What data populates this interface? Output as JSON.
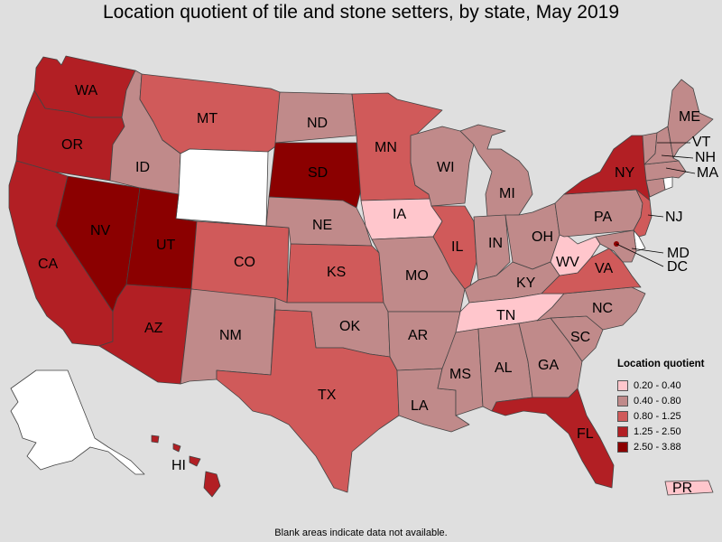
{
  "title": "Location quotient of tile and stone setters, by state, May 2019",
  "footnote": "Blank areas indicate data not available.",
  "legend": {
    "title": "Location quotient",
    "items": [
      {
        "label": "0.20 - 0.40",
        "color": "#ffc6cc"
      },
      {
        "label": "0.40 - 0.80",
        "color": "#c08a8a"
      },
      {
        "label": "0.80 - 1.25",
        "color": "#d05a5a"
      },
      {
        "label": "1.25 - 2.50",
        "color": "#b21f24"
      },
      {
        "label": "2.50 - 3.88",
        "color": "#8b0000"
      }
    ]
  },
  "colors": {
    "na": "#ffffff",
    "c1": "#ffc6cc",
    "c2": "#c08a8a",
    "c3": "#d05a5a",
    "c4": "#b21f24",
    "c5": "#8b0000"
  },
  "states": {
    "WA": {
      "name": "WA",
      "class": "1.25 - 2.50"
    },
    "OR": {
      "name": "OR",
      "class": "1.25 - 2.50"
    },
    "CA": {
      "name": "CA",
      "class": "1.25 - 2.50"
    },
    "NV": {
      "name": "NV",
      "class": "2.50 - 3.88"
    },
    "ID": {
      "name": "ID",
      "class": "0.40 - 0.80"
    },
    "MT": {
      "name": "MT",
      "class": "0.80 - 1.25"
    },
    "WY": {
      "class": "n/a"
    },
    "UT": {
      "name": "UT",
      "class": "2.50 - 3.88"
    },
    "AZ": {
      "name": "AZ",
      "class": "1.25 - 2.50"
    },
    "CO": {
      "name": "CO",
      "class": "0.80 - 1.25"
    },
    "NM": {
      "name": "NM",
      "class": "0.40 - 0.80"
    },
    "ND": {
      "name": "ND",
      "class": "0.40 - 0.80"
    },
    "SD": {
      "name": "SD",
      "class": "2.50 - 3.88"
    },
    "NE": {
      "name": "NE",
      "class": "0.40 - 0.80"
    },
    "KS": {
      "name": "KS",
      "class": "0.80 - 1.25"
    },
    "OK": {
      "name": "OK",
      "class": "0.40 - 0.80"
    },
    "TX": {
      "name": "TX",
      "class": "0.80 - 1.25"
    },
    "MN": {
      "name": "MN",
      "class": "0.80 - 1.25"
    },
    "IA": {
      "name": "IA",
      "class": "0.20 - 0.40"
    },
    "MO": {
      "name": "MO",
      "class": "0.40 - 0.80"
    },
    "AR": {
      "name": "AR",
      "class": "0.40 - 0.80"
    },
    "LA": {
      "name": "LA",
      "class": "0.40 - 0.80"
    },
    "WI": {
      "name": "WI",
      "class": "0.40 - 0.80"
    },
    "IL": {
      "name": "IL",
      "class": "0.80 - 1.25"
    },
    "MI": {
      "name": "MI",
      "class": "0.40 - 0.80"
    },
    "IN": {
      "name": "IN",
      "class": "0.40 - 0.80"
    },
    "OH": {
      "name": "OH",
      "class": "0.40 - 0.80"
    },
    "KY": {
      "name": "KY",
      "class": "0.40 - 0.80"
    },
    "TN": {
      "name": "TN",
      "class": "0.20 - 0.40"
    },
    "MS": {
      "name": "MS",
      "class": "0.40 - 0.80"
    },
    "AL": {
      "name": "AL",
      "class": "0.40 - 0.80"
    },
    "GA": {
      "name": "GA",
      "class": "0.40 - 0.80"
    },
    "FL": {
      "name": "FL",
      "class": "1.25 - 2.50"
    },
    "SC": {
      "name": "SC",
      "class": "0.40 - 0.80"
    },
    "NC": {
      "name": "NC",
      "class": "0.40 - 0.80"
    },
    "VA": {
      "name": "VA",
      "class": "0.80 - 1.25"
    },
    "WV": {
      "name": "WV",
      "class": "0.20 - 0.40"
    },
    "PA": {
      "name": "PA",
      "class": "0.40 - 0.80"
    },
    "NY": {
      "name": "NY",
      "class": "1.25 - 2.50"
    },
    "NJ": {
      "name": "NJ",
      "class": "0.80 - 1.25"
    },
    "DE": {
      "class": "n/a"
    },
    "MD": {
      "name": "MD",
      "class": "0.40 - 0.80"
    },
    "DC": {
      "name": "DC",
      "class": "2.50 - 3.88"
    },
    "CT": {
      "class": "0.40 - 0.80"
    },
    "RI": {
      "class": "n/a"
    },
    "MA": {
      "name": "MA",
      "class": "0.40 - 0.80"
    },
    "VT": {
      "name": "VT",
      "class": "0.40 - 0.80"
    },
    "NH": {
      "name": "NH",
      "class": "0.40 - 0.80"
    },
    "ME": {
      "name": "ME",
      "class": "0.40 - 0.80"
    },
    "AK": {
      "class": "n/a"
    },
    "HI": {
      "name": "HI",
      "class": "1.25 - 2.50"
    },
    "PR": {
      "name": "PR",
      "class": "0.20 - 0.40"
    }
  }
}
